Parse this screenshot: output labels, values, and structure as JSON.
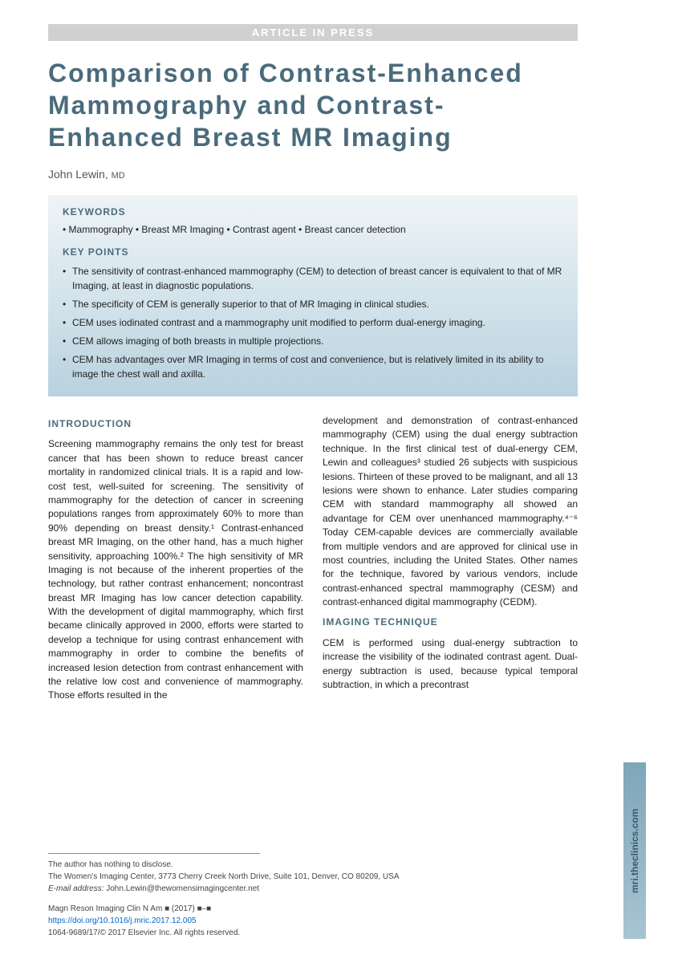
{
  "header_banner": "ARTICLE IN PRESS",
  "title": "Comparison of Contrast-Enhanced Mammography and Contrast-Enhanced Breast MR Imaging",
  "author_name": "John Lewin,",
  "author_cred": "MD",
  "keywords_heading": "KEYWORDS",
  "keywords_line": "• Mammography • Breast MR Imaging • Contrast agent • Breast cancer detection",
  "keypoints_heading": "KEY POINTS",
  "keypoints": [
    "The sensitivity of contrast-enhanced mammography (CEM) to detection of breast cancer is equivalent to that of MR Imaging, at least in diagnostic populations.",
    "The specificity of CEM is generally superior to that of MR Imaging in clinical studies.",
    "CEM uses iodinated contrast and a mammography unit modified to perform dual-energy imaging.",
    "CEM allows imaging of both breasts in multiple projections.",
    "CEM has advantages over MR Imaging in terms of cost and convenience, but is relatively limited in its ability to image the chest wall and axilla."
  ],
  "intro_heading": "INTRODUCTION",
  "intro_col1": "Screening mammography remains the only test for breast cancer that has been shown to reduce breast cancer mortality in randomized clinical trials. It is a rapid and low-cost test, well-suited for screening. The sensitivity of mammography for the detection of cancer in screening populations ranges from approximately 60% to more than 90% depending on breast density.¹ Contrast-enhanced breast MR Imaging, on the other hand, has a much higher sensitivity, approaching 100%.² The high sensitivity of MR Imaging is not because of the inherent properties of the technology, but rather contrast enhancement; noncontrast breast MR Imaging has low cancer detection capability. With the development of digital mammography, which first became clinically approved in 2000, efforts were started to develop a technique for using contrast enhancement with mammography in order to combine the benefits of increased lesion detection from contrast enhancement with the relative low cost and convenience of mammography. Those efforts resulted in the",
  "intro_col2": "development and demonstration of contrast-enhanced mammography (CEM) using the dual energy subtraction technique. In the first clinical test of dual-energy CEM, Lewin and colleagues³ studied 26 subjects with suspicious lesions. Thirteen of these proved to be malignant, and all 13 lesions were shown to enhance. Later studies comparing CEM with standard mammography all showed an advantage for CEM over unenhanced mammography.⁴⁻⁶ Today CEM-capable devices are commercially available from multiple vendors and are approved for clinical use in most countries, including the United States. Other names for the technique, favored by various vendors, include contrast-enhanced spectral mammography (CESM) and contrast-enhanced digital mammography (CEDM).",
  "technique_heading": "IMAGING TECHNIQUE",
  "technique_text": "CEM is performed using dual-energy subtraction to increase the visibility of the iodinated contrast agent. Dual-energy subtraction is used, because typical temporal subtraction, in which a precontrast",
  "footer": {
    "disclose": "The author has nothing to disclose.",
    "affiliation": "The Women's Imaging Center, 3773 Cherry Creek North Drive, Suite 101, Denver, CO 80209, USA",
    "email_label": "E-mail address:",
    "email": "John.Lewin@thewomensimagingcenter.net",
    "journal": "Magn Reson Imaging Clin N Am ■ (2017) ■–■",
    "doi": "https://doi.org/10.1016/j.mric.2017.12.005",
    "copyright": "1064-9689/17/© 2017 Elsevier Inc. All rights reserved."
  },
  "side_tab": "mri.theclinics.com",
  "colors": {
    "heading": "#4a6b7c",
    "box_grad_start": "#eef4f7",
    "box_grad_end": "#b8d2de",
    "tab_grad_start": "#a8c4d2",
    "tab_grad_end": "#7ea6ba",
    "link": "#0066cc"
  }
}
